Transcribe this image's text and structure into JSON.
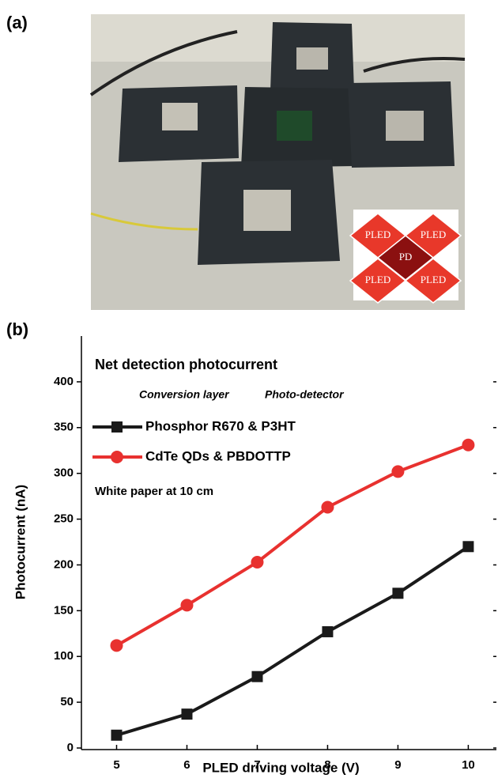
{
  "photo": {
    "panel_label": "(a)",
    "inset_labels": [
      "PLED",
      "PLED",
      "PD",
      "PLED",
      "PLED"
    ]
  },
  "chart_data": {
    "type": "line",
    "panel_label": "(b)",
    "title": "Net detection photocurrent",
    "legend_headers": [
      "Conversion layer",
      "Photo-detector"
    ],
    "annotation": "White paper at 10 cm",
    "x_label": "PLED driving voltage (V)",
    "y_label": "Photocurrent (nA)",
    "x": [
      5,
      6,
      7,
      8,
      9,
      10
    ],
    "series": [
      {
        "name": "Phosphor R670 & P3HT",
        "color": "#1a1a1a",
        "marker": "square",
        "values": [
          14,
          37,
          78,
          127,
          169,
          220
        ]
      },
      {
        "name": "CdTe QDs & PBDOTTP",
        "color": "#e8312f",
        "marker": "circle",
        "values": [
          112,
          156,
          203,
          263,
          302,
          331
        ]
      }
    ],
    "xlim": [
      4.5,
      10.4
    ],
    "ylim": [
      0,
      450
    ],
    "xticks": [
      5,
      6,
      7,
      8,
      9,
      10
    ],
    "yticks": [
      0,
      50,
      100,
      150,
      200,
      250,
      300,
      350,
      400
    ]
  }
}
